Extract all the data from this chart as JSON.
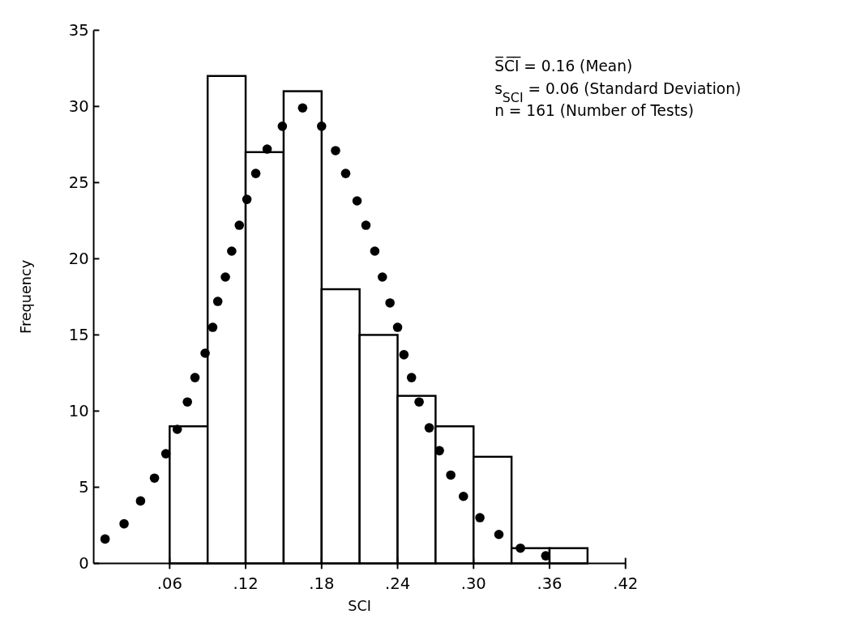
{
  "chart_data": {
    "type": "histogram",
    "xlabel": "SCI",
    "ylabel": "Frequency",
    "annotations": [
      "S̅C̅I̅ = 0.16  (Mean)",
      "s$_{SCI}$ = 0.06  (Standard Deviation)",
      "n = 161  (Number of Tests)"
    ],
    "xlim": [
      0,
      0.42
    ],
    "xticks": [
      {
        "value": 0.06,
        "label": ".06"
      },
      {
        "value": 0.12,
        "label": ".12"
      },
      {
        "value": 0.18,
        "label": ".18"
      },
      {
        "value": 0.24,
        "label": ".24"
      },
      {
        "value": 0.3,
        "label": ".30"
      },
      {
        "value": 0.36,
        "label": ".36"
      },
      {
        "value": 0.42,
        "label": ".42"
      }
    ],
    "ylim": [
      0,
      35
    ],
    "yticks": [
      0,
      5,
      10,
      15,
      20,
      25,
      30,
      35
    ],
    "grid": false,
    "series": [
      {
        "color": "#ffffff",
        "bins": [
          0.06,
          0.09,
          0.12,
          0.15,
          0.18,
          0.21,
          0.24,
          0.27,
          0.3,
          0.33,
          0.36,
          0.39
        ],
        "values": [
          9,
          32,
          27,
          31,
          18,
          15,
          11,
          9,
          7,
          1,
          1
        ]
      },
      {
        "type": "scatter",
        "color": "#000000",
        "marker": "circle",
        "x": [
          0.009,
          0.024,
          0.037,
          0.048,
          0.057,
          0.066,
          0.074,
          0.08,
          0.088,
          0.094,
          0.098,
          0.104,
          0.109,
          0.115,
          0.121,
          0.128,
          0.137,
          0.149,
          0.165,
          0.18,
          0.191,
          0.199,
          0.208,
          0.215,
          0.222,
          0.228,
          0.234,
          0.24,
          0.245,
          0.251,
          0.257,
          0.265,
          0.273,
          0.282,
          0.292,
          0.305,
          0.32,
          0.337,
          0.357
        ],
        "values": [
          1.6,
          2.6,
          4.1,
          5.6,
          7.2,
          8.8,
          10.6,
          12.2,
          13.8,
          15.5,
          17.2,
          18.8,
          20.5,
          22.2,
          23.9,
          25.6,
          27.2,
          28.7,
          29.9,
          28.7,
          27.1,
          25.6,
          23.8,
          22.2,
          20.5,
          18.8,
          17.1,
          15.5,
          13.7,
          12.2,
          10.6,
          8.9,
          7.4,
          5.8,
          4.4,
          3.0,
          1.9,
          1.0,
          0.5
        ]
      }
    ]
  }
}
